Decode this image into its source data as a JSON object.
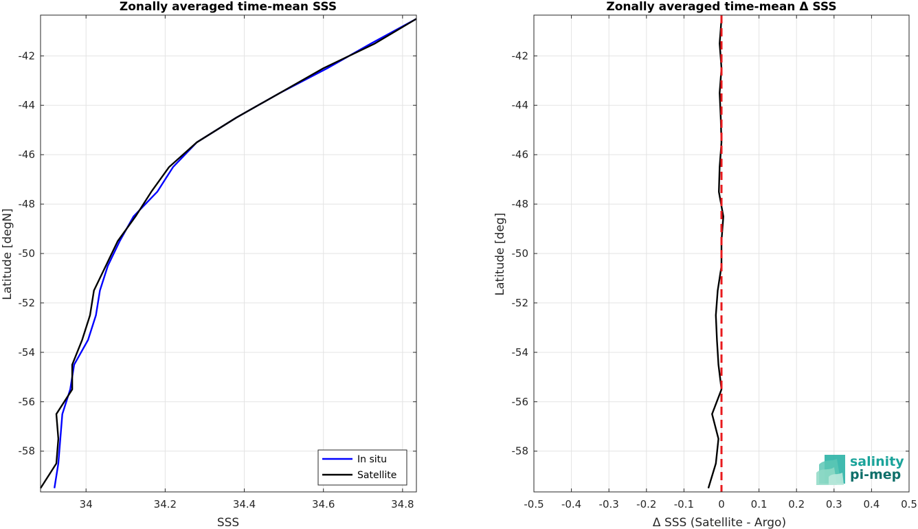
{
  "chart_data": [
    {
      "type": "line",
      "title": "Zonally averaged time-mean SSS",
      "xlabel": "SSS",
      "ylabel": "Latitude [degN]",
      "xlim": [
        33.885,
        34.835
      ],
      "ylim": [
        -59.65,
        -40.35
      ],
      "xticks": [
        34,
        34.2,
        34.4,
        34.6,
        34.8
      ],
      "xtick_labels": [
        "34",
        "34.2",
        "34.4",
        "34.6",
        "34.8"
      ],
      "yticks": [
        -42,
        -44,
        -46,
        -48,
        -50,
        -52,
        -54,
        -56,
        -58
      ],
      "ytick_labels": [
        "-42",
        "-44",
        "-46",
        "-48",
        "-50",
        "-52",
        "-54",
        "-56",
        "-58"
      ],
      "grid": true,
      "legend_position": "bottom-right",
      "series": [
        {
          "name": "In situ",
          "color": "#0000ff",
          "points": [
            [
              34.835,
              -40.5
            ],
            [
              34.72,
              -41.5
            ],
            [
              34.61,
              -42.5
            ],
            [
              34.49,
              -43.5
            ],
            [
              34.38,
              -44.5
            ],
            [
              34.28,
              -45.5
            ],
            [
              34.22,
              -46.5
            ],
            [
              34.18,
              -47.5
            ],
            [
              34.12,
              -48.5
            ],
            [
              34.085,
              -49.5
            ],
            [
              34.055,
              -50.5
            ],
            [
              34.035,
              -51.5
            ],
            [
              34.025,
              -52.5
            ],
            [
              34.005,
              -53.5
            ],
            [
              33.97,
              -54.5
            ],
            [
              33.96,
              -55.5
            ],
            [
              33.94,
              -56.5
            ],
            [
              33.935,
              -57.5
            ],
            [
              33.93,
              -58.5
            ],
            [
              33.92,
              -59.5
            ]
          ]
        },
        {
          "name": "Satellite",
          "color": "#000000",
          "points": [
            [
              34.835,
              -40.5
            ],
            [
              34.73,
              -41.5
            ],
            [
              34.6,
              -42.5
            ],
            [
              34.49,
              -43.5
            ],
            [
              34.38,
              -44.5
            ],
            [
              34.28,
              -45.5
            ],
            [
              34.21,
              -46.5
            ],
            [
              34.165,
              -47.5
            ],
            [
              34.125,
              -48.5
            ],
            [
              34.08,
              -49.5
            ],
            [
              34.05,
              -50.5
            ],
            [
              34.02,
              -51.5
            ],
            [
              34.01,
              -52.5
            ],
            [
              33.99,
              -53.5
            ],
            [
              33.965,
              -54.5
            ],
            [
              33.965,
              -55.5
            ],
            [
              33.925,
              -56.5
            ],
            [
              33.93,
              -57.5
            ],
            [
              33.925,
              -58.5
            ],
            [
              33.885,
              -59.5
            ]
          ]
        }
      ]
    },
    {
      "type": "line",
      "title": "Zonally averaged time-mean Δ SSS",
      "xlabel": "Δ SSS (Satellite - Argo)",
      "ylabel": "Latitude [deg]",
      "xlim": [
        -0.5,
        0.5
      ],
      "ylim": [
        -59.65,
        -40.35
      ],
      "xticks": [
        -0.5,
        -0.4,
        -0.3,
        -0.2,
        -0.1,
        0,
        0.1,
        0.2,
        0.3,
        0.4,
        0.5
      ],
      "xtick_labels": [
        "-0.5",
        "-0.4",
        "-0.3",
        "-0.2",
        "-0.1",
        "0",
        "0.1",
        "0.2",
        "0.3",
        "0.4",
        "0.5"
      ],
      "yticks": [
        -42,
        -44,
        -46,
        -48,
        -50,
        -52,
        -54,
        -56,
        -58
      ],
      "ytick_labels": [
        "-42",
        "-44",
        "-46",
        "-48",
        "-50",
        "-52",
        "-54",
        "-56",
        "-58"
      ],
      "grid": true,
      "reference_line": {
        "x": 0,
        "color": "#e8191c",
        "style": "dashed"
      },
      "series": [
        {
          "color": "#000000",
          "points": [
            [
              0,
              -40.5
            ],
            [
              -0.005,
              -41.5
            ],
            [
              0,
              -42.5
            ],
            [
              -0.005,
              -43.5
            ],
            [
              -0.002,
              -44.5
            ],
            [
              0,
              -45.5
            ],
            [
              -0.005,
              -46.5
            ],
            [
              -0.007,
              -47.5
            ],
            [
              0.005,
              -48.5
            ],
            [
              0,
              -49.5
            ],
            [
              0,
              -50.5
            ],
            [
              -0.01,
              -51.5
            ],
            [
              -0.015,
              -52.5
            ],
            [
              -0.012,
              -53.5
            ],
            [
              -0.008,
              -54.5
            ],
            [
              0,
              -55.5
            ],
            [
              -0.025,
              -56.5
            ],
            [
              -0.008,
              -57.5
            ],
            [
              -0.015,
              -58.5
            ],
            [
              -0.035,
              -59.5
            ]
          ]
        }
      ]
    }
  ],
  "logo": {
    "line1": "salinity",
    "line2": "pi-mep"
  }
}
